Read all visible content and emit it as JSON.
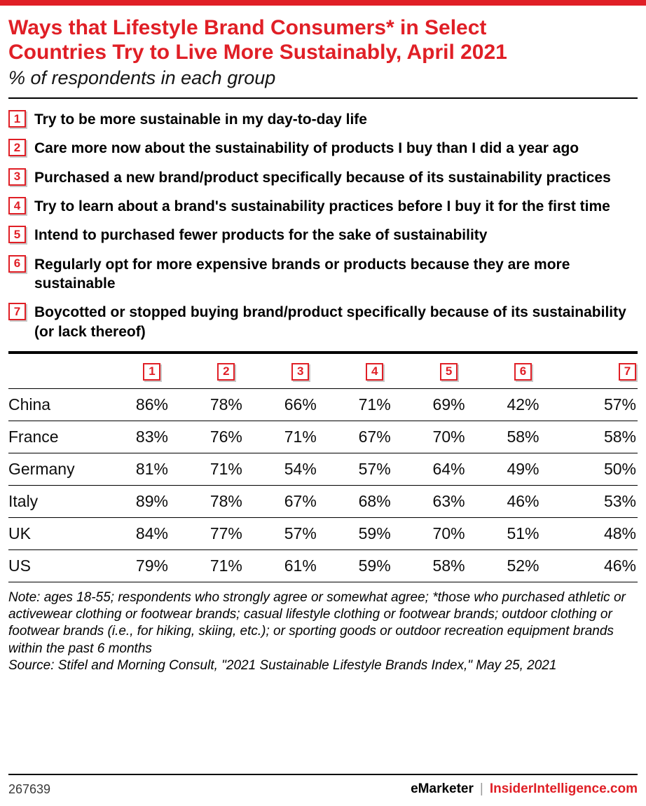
{
  "colors": {
    "accent_red": "#e01f26",
    "text_black": "#000000",
    "footer_gray": "#3a3a3a"
  },
  "header": {
    "title_lines": [
      "Ways that Lifestyle Brand Consumers* in Select",
      "Countries Try to Live More Sustainably, April 2021"
    ],
    "subtitle": "% of respondents in each group"
  },
  "chart_data": {
    "type": "table",
    "title": "Ways that Lifestyle Brand Consumers* in Select Countries Try to Live More Sustainably, April 2021",
    "subtitle": "% of respondents in each group",
    "unit": "%",
    "columns": [
      "1",
      "2",
      "3",
      "4",
      "5",
      "6",
      "7"
    ],
    "column_labels": [
      "Try to be more sustainable in my day-to-day life",
      "Care more now about the sustainability of products I buy than I did a year ago",
      "Purchased a new brand/product specifically because of its sustainability practices",
      "Try to learn about a brand's sustainability practices before I buy it for the first time",
      "Intend to purchased fewer products for the sake of sustainability",
      "Regularly opt for more expensive brands or products because they are more sustainable",
      "Boycotted or stopped buying brand/product specifically because of its sustainability (or lack thereof)"
    ],
    "rows": [
      {
        "country": "China",
        "values": [
          86,
          78,
          66,
          71,
          69,
          42,
          57
        ]
      },
      {
        "country": "France",
        "values": [
          83,
          76,
          71,
          67,
          70,
          58,
          58
        ]
      },
      {
        "country": "Germany",
        "values": [
          81,
          71,
          54,
          57,
          64,
          49,
          50
        ]
      },
      {
        "country": "Italy",
        "values": [
          89,
          78,
          67,
          68,
          63,
          46,
          53
        ]
      },
      {
        "country": "UK",
        "values": [
          84,
          77,
          57,
          59,
          70,
          51,
          48
        ]
      },
      {
        "country": "US",
        "values": [
          79,
          71,
          61,
          59,
          58,
          52,
          46
        ]
      }
    ]
  },
  "notes": {
    "note": "Note: ages 18-55; respondents who strongly agree or somewhat agree; *those who purchased athletic or activewear clothing or footwear brands; casual lifestyle clothing or footwear brands; outdoor clothing or footwear brands (i.e., for hiking, skiing, etc.); or sporting goods or outdoor recreation equipment brands within the past 6 months",
    "source": "Source: Stifel and Morning Consult, \"2021 Sustainable Lifestyle Brands Index,\" May 25, 2021"
  },
  "footer": {
    "chart_id": "267639",
    "brand_left": "eMarketer",
    "brand_separator": "|",
    "brand_right": "InsiderIntelligence.com"
  }
}
